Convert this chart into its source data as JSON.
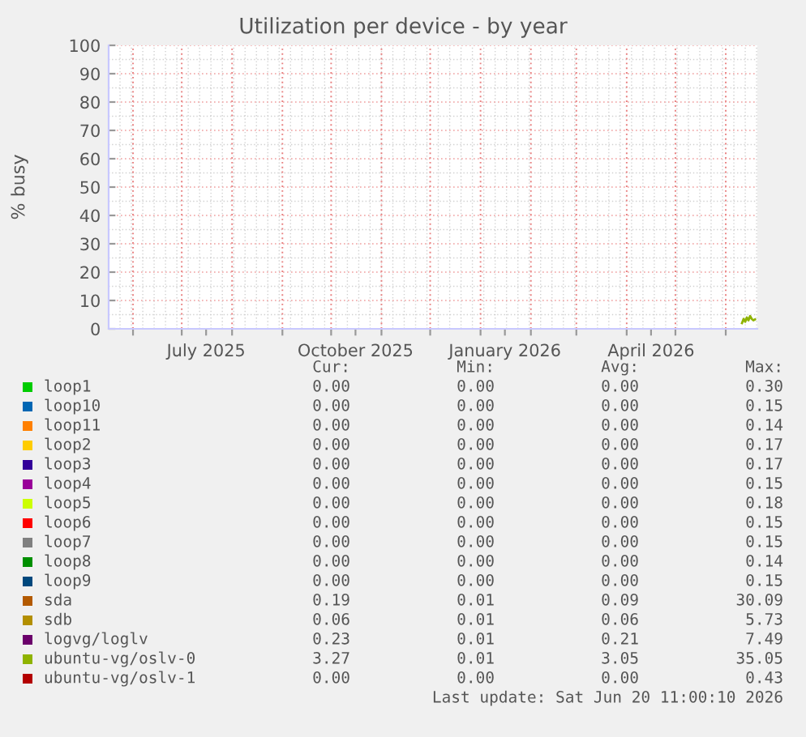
{
  "chart_data": {
    "type": "line",
    "title": "Utilization per device - by year",
    "ylabel": "% busy",
    "xlim": [
      "2025-05-17",
      "2026-06-20T11:00"
    ],
    "ylim": [
      0,
      100
    ],
    "yticks": [
      0,
      10,
      20,
      30,
      40,
      50,
      60,
      70,
      80,
      90,
      100
    ],
    "xticks": [
      {
        "value": "2025-06-01",
        "label": null
      },
      {
        "value": "2025-07-01",
        "label": null
      },
      {
        "value": "2025-07-16",
        "label": "July 2025"
      },
      {
        "value": "2025-08-01",
        "label": null
      },
      {
        "value": "2025-09-01",
        "label": null
      },
      {
        "value": "2025-10-01",
        "label": null
      },
      {
        "value": "2025-10-16",
        "label": "October 2025"
      },
      {
        "value": "2025-11-01",
        "label": null
      },
      {
        "value": "2025-12-01",
        "label": null
      },
      {
        "value": "2026-01-01",
        "label": null
      },
      {
        "value": "2026-01-16",
        "label": "January 2026"
      },
      {
        "value": "2026-02-01",
        "label": null
      },
      {
        "value": "2026-03-01",
        "label": null
      },
      {
        "value": "2026-04-01",
        "label": null
      },
      {
        "value": "2026-04-16",
        "label": "April 2026"
      },
      {
        "value": "2026-05-01",
        "label": null
      },
      {
        "value": "2026-06-01",
        "label": null
      }
    ],
    "grid": true,
    "legend": "bottom",
    "marker": "none",
    "line_style": "solid",
    "x": [
      "2026-06-11",
      "2026-06-12",
      "2026-06-13",
      "2026-06-14",
      "2026-06-15",
      "2026-06-16",
      "2026-06-17",
      "2026-06-18",
      "2026-06-19"
    ],
    "series": [
      {
        "name": "loop1",
        "color": "#00cc00",
        "values": [
          null,
          null,
          null,
          null,
          null,
          null,
          null,
          null,
          null
        ]
      },
      {
        "name": "loop10",
        "color": "#0066b3",
        "values": [
          null,
          null,
          null,
          null,
          null,
          null,
          null,
          null,
          null
        ]
      },
      {
        "name": "loop11",
        "color": "#ff8000",
        "values": [
          null,
          null,
          null,
          null,
          null,
          null,
          null,
          null,
          null
        ]
      },
      {
        "name": "loop2",
        "color": "#ffcc00",
        "values": [
          null,
          null,
          null,
          null,
          null,
          null,
          null,
          null,
          null
        ]
      },
      {
        "name": "loop3",
        "color": "#330099",
        "values": [
          null,
          null,
          null,
          null,
          null,
          null,
          null,
          null,
          null
        ]
      },
      {
        "name": "loop4",
        "color": "#990099",
        "values": [
          null,
          null,
          null,
          null,
          null,
          null,
          null,
          null,
          null
        ]
      },
      {
        "name": "loop5",
        "color": "#ccff00",
        "values": [
          null,
          null,
          null,
          null,
          null,
          null,
          null,
          null,
          null
        ]
      },
      {
        "name": "loop6",
        "color": "#ff0000",
        "values": [
          null,
          null,
          null,
          null,
          null,
          null,
          null,
          null,
          null
        ]
      },
      {
        "name": "loop7",
        "color": "#808080",
        "values": [
          null,
          null,
          null,
          null,
          null,
          null,
          null,
          null,
          null
        ]
      },
      {
        "name": "loop8",
        "color": "#008f00",
        "values": [
          null,
          null,
          null,
          null,
          null,
          null,
          null,
          null,
          null
        ]
      },
      {
        "name": "loop9",
        "color": "#00487d",
        "values": [
          null,
          null,
          null,
          null,
          null,
          null,
          null,
          null,
          null
        ]
      },
      {
        "name": "sda",
        "color": "#b35a00",
        "values": [
          null,
          null,
          null,
          null,
          null,
          null,
          null,
          null,
          null
        ]
      },
      {
        "name": "sdb",
        "color": "#b38f00",
        "values": [
          null,
          null,
          null,
          null,
          null,
          null,
          null,
          null,
          null
        ]
      },
      {
        "name": "logvg/loglv",
        "color": "#6b006b",
        "values": [
          null,
          null,
          null,
          null,
          null,
          null,
          null,
          null,
          null
        ]
      },
      {
        "name": "ubuntu-vg/oslv-0",
        "color": "#8fb300",
        "values": [
          2.0,
          3.5,
          2.5,
          4.0,
          3.0,
          4.5,
          3.5,
          3.0,
          3.3
        ]
      },
      {
        "name": "ubuntu-vg/oslv-1",
        "color": "#b30000",
        "values": [
          null,
          null,
          null,
          null,
          null,
          null,
          null,
          null,
          null
        ]
      }
    ],
    "annotations": [
      "Cur:",
      "Min:",
      "Avg:",
      "Max:",
      "0.00",
      "0.00",
      "0.00",
      "0.30",
      "0.00",
      "0.00",
      "0.00",
      "0.15",
      "0.00",
      "0.00",
      "0.00",
      "0.14",
      "0.00",
      "0.00",
      "0.00",
      "0.17",
      "0.00",
      "0.00",
      "0.00",
      "0.17",
      "0.00",
      "0.00",
      "0.00",
      "0.15",
      "0.00",
      "0.00",
      "0.00",
      "0.18",
      "0.00",
      "0.00",
      "0.00",
      "0.15",
      "0.00",
      "0.00",
      "0.00",
      "0.15",
      "0.00",
      "0.00",
      "0.00",
      "0.14",
      "0.00",
      "0.00",
      "0.00",
      "0.15",
      "0.19",
      "0.01",
      "0.09",
      "30.09",
      "0.06",
      "0.01",
      "0.06",
      "5.73",
      "0.23",
      "0.01",
      "0.21",
      "7.49",
      "3.27",
      "0.01",
      "3.05",
      "35.05",
      "0.00",
      "0.00",
      "0.00",
      "0.43",
      "Last update: Sat Jun 20 11:00:10 2026"
    ]
  }
}
